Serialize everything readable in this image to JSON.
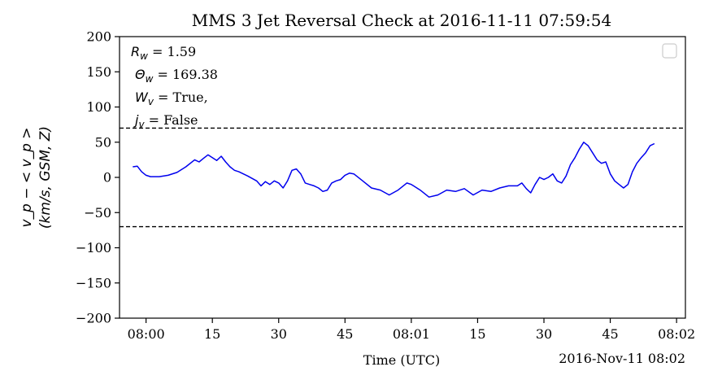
{
  "chart_data": {
    "type": "line",
    "title": "MMS 3 Jet Reversal Check at 2016-11-11 07:59:54",
    "xlabel": "Time (UTC)",
    "x_offset_label": "2016-Nov-11 08:02",
    "ylabel_line1": "v_p − < v_p >",
    "ylabel_line2": "(km/s, GSM, Z)",
    "ylim": [
      -200,
      200
    ],
    "y_ticks": [
      200,
      150,
      100,
      50,
      0,
      -50,
      -100,
      -150,
      -200
    ],
    "y_tick_labels": [
      "200",
      "150",
      "100",
      "50",
      "0",
      "−50",
      "−100",
      "−150",
      "−200"
    ],
    "xlim": [
      "07:59:54",
      "08:02:02"
    ],
    "x_ticks": [
      "08:00:00",
      "08:00:15",
      "08:00:30",
      "08:00:45",
      "08:01:00",
      "08:01:15",
      "08:01:30",
      "08:01:45",
      "08:02:00"
    ],
    "x_tick_labels": [
      "08:00",
      "15",
      "30",
      "45",
      "08:01",
      "15",
      "30",
      "45",
      "08:02"
    ],
    "threshold_lines": [
      70,
      -70
    ],
    "grid": false,
    "legend": "top-right (empty)",
    "annotations": [
      {
        "symbol": "R",
        "sub": "w",
        "value": " = 1.59"
      },
      {
        "symbol": "Θ",
        "sub": "w",
        "value": " = 169.38"
      },
      {
        "symbol": "W",
        "sub": "v",
        "value": " = True,"
      },
      {
        "symbol": "j",
        "sub": "v",
        "value": " = False"
      }
    ],
    "series": [
      {
        "color": "#0000ee",
        "x": [
          "07:59:57",
          "07:59:58",
          "07:59:59",
          "08:00:00",
          "08:00:01",
          "08:00:03",
          "08:00:05",
          "08:00:07",
          "08:00:09",
          "08:00:11",
          "08:00:12",
          "08:00:13",
          "08:00:14",
          "08:00:15",
          "08:00:16",
          "08:00:17",
          "08:00:18",
          "08:00:19",
          "08:00:20",
          "08:00:21",
          "08:00:23",
          "08:00:25",
          "08:00:26",
          "08:00:27",
          "08:00:28",
          "08:00:29",
          "08:00:30",
          "08:00:31",
          "08:00:32",
          "08:00:33",
          "08:00:34",
          "08:00:35",
          "08:00:36",
          "08:00:37",
          "08:00:38",
          "08:00:39",
          "08:00:40",
          "08:00:41",
          "08:00:42",
          "08:00:43",
          "08:00:44",
          "08:00:45",
          "08:00:46",
          "08:00:47",
          "08:00:49",
          "08:00:51",
          "08:00:53",
          "08:00:55",
          "08:00:57",
          "08:00:59",
          "08:01:00",
          "08:01:02",
          "08:01:04",
          "08:01:06",
          "08:01:08",
          "08:01:10",
          "08:01:12",
          "08:01:14",
          "08:01:16",
          "08:01:18",
          "08:01:20",
          "08:01:22",
          "08:01:24",
          "08:01:25",
          "08:01:26",
          "08:01:27",
          "08:01:28",
          "08:01:29",
          "08:01:30",
          "08:01:31",
          "08:01:32",
          "08:01:33",
          "08:01:34",
          "08:01:35",
          "08:01:36",
          "08:01:37",
          "08:01:38",
          "08:01:39",
          "08:01:40",
          "08:01:41",
          "08:01:42",
          "08:01:43",
          "08:01:44",
          "08:01:45",
          "08:01:46",
          "08:01:47",
          "08:01:48",
          "08:01:49",
          "08:01:50",
          "08:01:51",
          "08:01:52",
          "08:01:53",
          "08:01:54",
          "08:01:55"
        ],
        "y": [
          15,
          16,
          8,
          3,
          1,
          1,
          3,
          7,
          15,
          25,
          22,
          27,
          32,
          28,
          24,
          30,
          22,
          15,
          10,
          8,
          2,
          -5,
          -12,
          -6,
          -10,
          -5,
          -8,
          -15,
          -5,
          10,
          12,
          5,
          -8,
          -10,
          -12,
          -15,
          -20,
          -18,
          -8,
          -5,
          -3,
          3,
          6,
          5,
          -5,
          -15,
          -18,
          -25,
          -18,
          -8,
          -10,
          -18,
          -28,
          -25,
          -18,
          -20,
          -16,
          -25,
          -18,
          -20,
          -15,
          -12,
          -12,
          -8,
          -16,
          -22,
          -10,
          0,
          -3,
          0,
          5,
          -5,
          -8,
          2,
          18,
          28,
          40,
          50,
          45,
          35,
          25,
          20,
          22,
          5,
          -5,
          -10,
          -15,
          -10,
          8,
          20,
          28,
          35,
          45,
          48
        ]
      }
    ]
  }
}
